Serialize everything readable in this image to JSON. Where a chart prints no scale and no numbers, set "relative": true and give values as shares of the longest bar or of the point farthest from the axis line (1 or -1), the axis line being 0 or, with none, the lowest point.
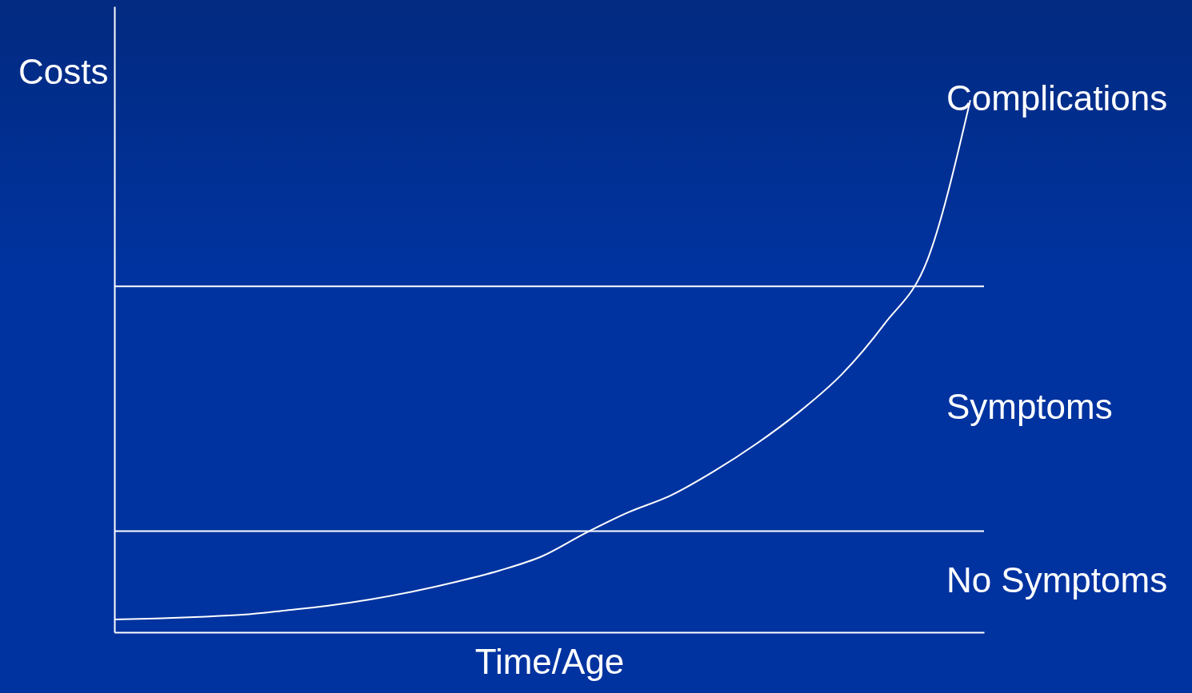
{
  "chart_data": {
    "type": "line",
    "relative": true,
    "xlabel": "Time/Age",
    "ylabel": "Costs",
    "categories": [
      null,
      null,
      null,
      null,
      null,
      null,
      null,
      null,
      null,
      null,
      null,
      null,
      null,
      null,
      null,
      null,
      null,
      null,
      null,
      null,
      null
    ],
    "values": [
      0.024,
      0.026,
      0.029,
      0.033,
      0.041,
      0.05,
      0.062,
      0.077,
      0.095,
      0.116,
      0.143,
      0.186,
      0.225,
      0.257,
      0.302,
      0.354,
      0.414,
      0.485,
      0.58,
      0.7,
      1
    ],
    "color": "#ffffff",
    "ref_lines": [
      {
        "axis": "y",
        "value": 0.19,
        "color": "#ffffff"
      },
      {
        "axis": "y",
        "value": 0.65,
        "color": "#ffffff"
      }
    ],
    "annotations": [
      "No Symptoms",
      "Symptoms",
      "Complications"
    ]
  }
}
